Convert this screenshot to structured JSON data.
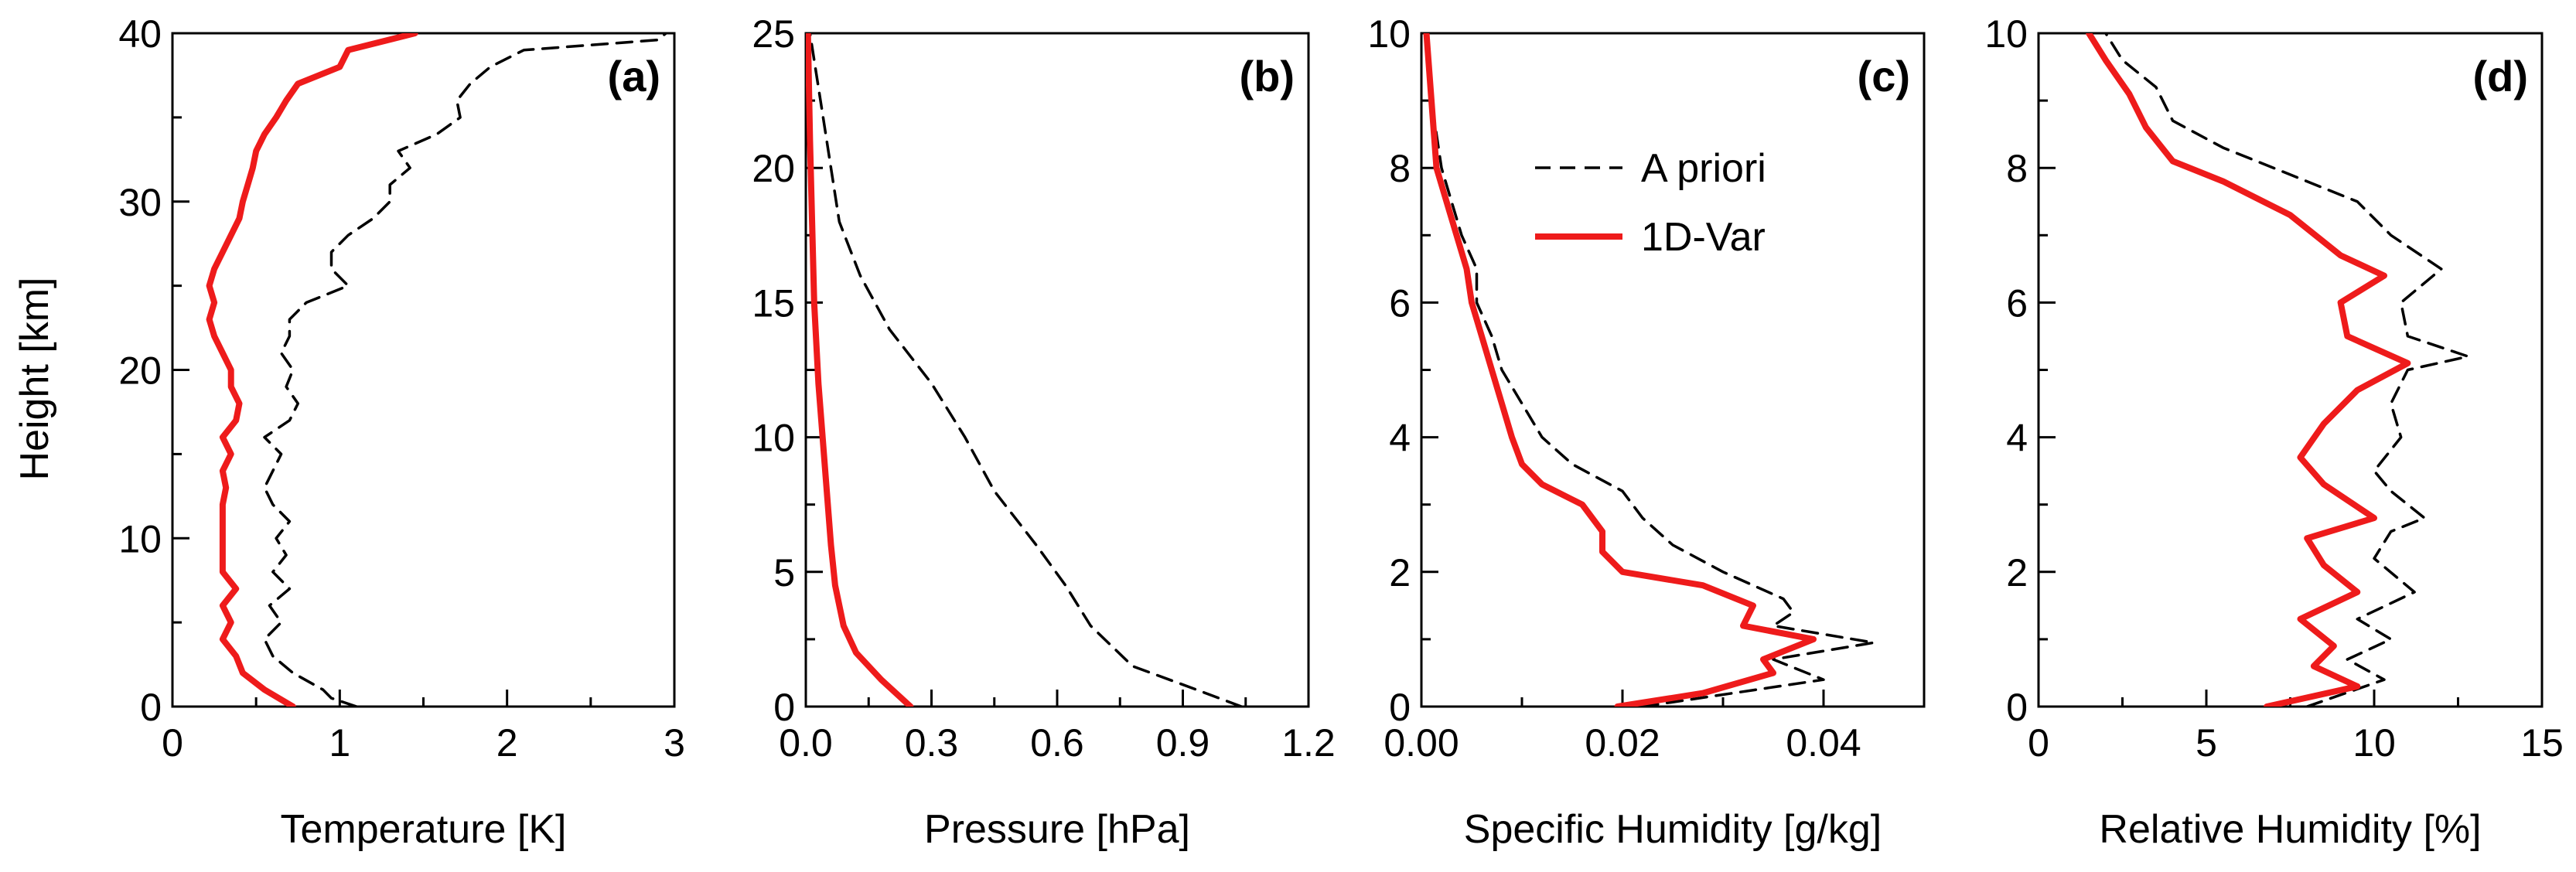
{
  "colors": {
    "apriori": "#000000",
    "var1d": "#ee1b1b"
  },
  "legend": {
    "apriori_label": "A priori",
    "var1d_label": "1D-Var",
    "apriori_style": "dashed",
    "var1d_style": "solid"
  },
  "chart_data": [
    {
      "type": "line",
      "panel_label": "(a)",
      "xlabel": "Temperature [K]",
      "ylabel": "Height [km]",
      "xlim": [
        0,
        3
      ],
      "ylim": [
        0,
        40
      ],
      "xticks": [
        0,
        1,
        2,
        3
      ],
      "xtick_labels": [
        "0",
        "1",
        "2",
        "3"
      ],
      "yticks": [
        0,
        10,
        20,
        30,
        40
      ],
      "ytick_labels": [
        "0",
        "10",
        "20",
        "30",
        "40"
      ],
      "series": [
        {
          "name": "A priori",
          "style": "dashed",
          "points": [
            [
              1.1,
              0
            ],
            [
              0.95,
              0.5
            ],
            [
              0.9,
              1
            ],
            [
              0.72,
              2
            ],
            [
              0.6,
              3
            ],
            [
              0.55,
              4
            ],
            [
              0.65,
              5
            ],
            [
              0.58,
              6
            ],
            [
              0.7,
              7
            ],
            [
              0.6,
              8
            ],
            [
              0.68,
              9
            ],
            [
              0.62,
              10
            ],
            [
              0.7,
              11
            ],
            [
              0.6,
              12
            ],
            [
              0.55,
              13
            ],
            [
              0.6,
              14
            ],
            [
              0.65,
              15
            ],
            [
              0.55,
              16
            ],
            [
              0.7,
              17
            ],
            [
              0.75,
              18
            ],
            [
              0.68,
              19
            ],
            [
              0.72,
              20
            ],
            [
              0.65,
              21
            ],
            [
              0.7,
              22
            ],
            [
              0.7,
              23
            ],
            [
              0.8,
              24
            ],
            [
              1.05,
              25
            ],
            [
              0.95,
              26
            ],
            [
              0.95,
              27
            ],
            [
              1.05,
              28
            ],
            [
              1.2,
              29
            ],
            [
              1.3,
              30
            ],
            [
              1.3,
              31
            ],
            [
              1.42,
              32
            ],
            [
              1.35,
              33
            ],
            [
              1.58,
              34
            ],
            [
              1.72,
              35
            ],
            [
              1.7,
              36
            ],
            [
              1.78,
              37
            ],
            [
              1.9,
              38
            ],
            [
              2.1,
              39
            ],
            [
              2.9,
              39.6
            ],
            [
              2.95,
              40
            ]
          ]
        },
        {
          "name": "1D-Var",
          "style": "solid",
          "points": [
            [
              0.72,
              0
            ],
            [
              0.55,
              1
            ],
            [
              0.42,
              2
            ],
            [
              0.38,
              3
            ],
            [
              0.3,
              4
            ],
            [
              0.35,
              5
            ],
            [
              0.3,
              6
            ],
            [
              0.38,
              7
            ],
            [
              0.3,
              8
            ],
            [
              0.3,
              9
            ],
            [
              0.3,
              10
            ],
            [
              0.3,
              11
            ],
            [
              0.3,
              12
            ],
            [
              0.32,
              13
            ],
            [
              0.3,
              14
            ],
            [
              0.35,
              15
            ],
            [
              0.3,
              16
            ],
            [
              0.38,
              17
            ],
            [
              0.4,
              18
            ],
            [
              0.35,
              19
            ],
            [
              0.35,
              20
            ],
            [
              0.3,
              21
            ],
            [
              0.25,
              22
            ],
            [
              0.22,
              23
            ],
            [
              0.25,
              24
            ],
            [
              0.22,
              25
            ],
            [
              0.25,
              26
            ],
            [
              0.3,
              27
            ],
            [
              0.35,
              28
            ],
            [
              0.4,
              29
            ],
            [
              0.42,
              30
            ],
            [
              0.45,
              31
            ],
            [
              0.48,
              32
            ],
            [
              0.5,
              33
            ],
            [
              0.55,
              34
            ],
            [
              0.62,
              35
            ],
            [
              0.68,
              36
            ],
            [
              0.75,
              37
            ],
            [
              1.0,
              38
            ],
            [
              1.05,
              39
            ],
            [
              1.45,
              40
            ]
          ]
        }
      ]
    },
    {
      "type": "line",
      "panel_label": "(b)",
      "xlabel": "Pressure [hPa]",
      "ylabel": "",
      "xlim": [
        0,
        1.2
      ],
      "ylim": [
        0,
        25
      ],
      "xticks": [
        0,
        0.3,
        0.6,
        0.9,
        1.2
      ],
      "xtick_labels": [
        "0.0",
        "0.3",
        "0.6",
        "0.9",
        "1.2"
      ],
      "yticks": [
        0,
        5,
        10,
        15,
        20,
        25
      ],
      "ytick_labels": [
        "0",
        "5",
        "10",
        "15",
        "20",
        "25"
      ],
      "series": [
        {
          "name": "A priori",
          "style": "dashed",
          "points": [
            [
              1.04,
              0
            ],
            [
              0.92,
              0.7
            ],
            [
              0.78,
              1.5
            ],
            [
              0.68,
              3
            ],
            [
              0.62,
              4.5
            ],
            [
              0.55,
              6
            ],
            [
              0.45,
              8
            ],
            [
              0.38,
              10
            ],
            [
              0.3,
              12
            ],
            [
              0.2,
              14
            ],
            [
              0.13,
              16
            ],
            [
              0.08,
              18
            ],
            [
              0.06,
              20
            ],
            [
              0.04,
              22
            ],
            [
              0.02,
              24
            ],
            [
              0.01,
              25
            ]
          ]
        },
        {
          "name": "1D-Var",
          "style": "solid",
          "points": [
            [
              0.25,
              0
            ],
            [
              0.18,
              1
            ],
            [
              0.12,
              2
            ],
            [
              0.09,
              3
            ],
            [
              0.07,
              4.5
            ],
            [
              0.06,
              6
            ],
            [
              0.05,
              8
            ],
            [
              0.04,
              10
            ],
            [
              0.03,
              12
            ],
            [
              0.02,
              15
            ],
            [
              0.015,
              18
            ],
            [
              0.01,
              21
            ],
            [
              0.005,
              25
            ]
          ]
        }
      ]
    },
    {
      "type": "line",
      "panel_label": "(c)",
      "xlabel": "Specific Humidity [g/kg]",
      "ylabel": "",
      "xlim": [
        0,
        0.05
      ],
      "ylim": [
        0,
        10
      ],
      "xticks": [
        0,
        0.02,
        0.04
      ],
      "xtick_labels": [
        "0.00",
        "0.02",
        "0.04"
      ],
      "yticks": [
        0,
        2,
        4,
        6,
        8,
        10
      ],
      "ytick_labels": [
        "0",
        "2",
        "4",
        "6",
        "8",
        "10"
      ],
      "series": [
        {
          "name": "A priori",
          "style": "dashed",
          "points": [
            [
              0.022,
              0
            ],
            [
              0.04,
              0.4
            ],
            [
              0.035,
              0.7
            ],
            [
              0.045,
              0.95
            ],
            [
              0.035,
              1.2
            ],
            [
              0.037,
              1.4
            ],
            [
              0.036,
              1.6
            ],
            [
              0.03,
              2
            ],
            [
              0.025,
              2.4
            ],
            [
              0.022,
              2.8
            ],
            [
              0.02,
              3.2
            ],
            [
              0.015,
              3.6
            ],
            [
              0.012,
              4
            ],
            [
              0.01,
              4.5
            ],
            [
              0.008,
              5
            ],
            [
              0.007,
              5.5
            ],
            [
              0.0055,
              6
            ],
            [
              0.0055,
              6.5
            ],
            [
              0.004,
              7
            ],
            [
              0.003,
              7.5
            ],
            [
              0.002,
              8
            ],
            [
              0.001,
              9
            ],
            [
              0.0005,
              10
            ]
          ]
        },
        {
          "name": "1D-Var",
          "style": "solid",
          "points": [
            [
              0.0195,
              0
            ],
            [
              0.028,
              0.2
            ],
            [
              0.035,
              0.5
            ],
            [
              0.034,
              0.7
            ],
            [
              0.039,
              1
            ],
            [
              0.032,
              1.2
            ],
            [
              0.033,
              1.5
            ],
            [
              0.028,
              1.8
            ],
            [
              0.02,
              2
            ],
            [
              0.018,
              2.3
            ],
            [
              0.018,
              2.6
            ],
            [
              0.016,
              3
            ],
            [
              0.012,
              3.3
            ],
            [
              0.01,
              3.6
            ],
            [
              0.009,
              4
            ],
            [
              0.008,
              4.5
            ],
            [
              0.007,
              5
            ],
            [
              0.006,
              5.5
            ],
            [
              0.005,
              6
            ],
            [
              0.0045,
              6.5
            ],
            [
              0.0035,
              7
            ],
            [
              0.0025,
              7.5
            ],
            [
              0.0015,
              8
            ],
            [
              0.001,
              9
            ],
            [
              0.0005,
              10
            ]
          ]
        }
      ]
    },
    {
      "type": "line",
      "panel_label": "(d)",
      "xlabel": "Relative Humidity [%]",
      "ylabel": "",
      "xlim": [
        0,
        15
      ],
      "ylim": [
        0,
        10
      ],
      "xticks": [
        0,
        5,
        10,
        15
      ],
      "xtick_labels": [
        "0",
        "5",
        "10",
        "15"
      ],
      "yticks": [
        0,
        2,
        4,
        6,
        8,
        10
      ],
      "ytick_labels": [
        "0",
        "2",
        "4",
        "6",
        "8",
        "10"
      ],
      "series": [
        {
          "name": "A priori",
          "style": "dashed",
          "points": [
            [
              8,
              0
            ],
            [
              10.3,
              0.4
            ],
            [
              9.2,
              0.7
            ],
            [
              10.5,
              1
            ],
            [
              9.5,
              1.3
            ],
            [
              11.2,
              1.7
            ],
            [
              10,
              2.2
            ],
            [
              10.5,
              2.6
            ],
            [
              11.5,
              2.8
            ],
            [
              10.5,
              3.2
            ],
            [
              10,
              3.5
            ],
            [
              10.8,
              4
            ],
            [
              10.5,
              4.5
            ],
            [
              11,
              5
            ],
            [
              12.8,
              5.2
            ],
            [
              11,
              5.5
            ],
            [
              10.8,
              6
            ],
            [
              12,
              6.5
            ],
            [
              10.5,
              7
            ],
            [
              9.5,
              7.5
            ],
            [
              7,
              8
            ],
            [
              5.5,
              8.3
            ],
            [
              4,
              8.7
            ],
            [
              3.5,
              9.2
            ],
            [
              2.5,
              9.6
            ],
            [
              2,
              10
            ]
          ]
        },
        {
          "name": "1D-Var",
          "style": "solid",
          "points": [
            [
              6.8,
              0
            ],
            [
              9.5,
              0.3
            ],
            [
              8.2,
              0.6
            ],
            [
              8.8,
              0.9
            ],
            [
              7.8,
              1.3
            ],
            [
              9.5,
              1.7
            ],
            [
              8.5,
              2.1
            ],
            [
              8,
              2.5
            ],
            [
              10,
              2.8
            ],
            [
              8.5,
              3.3
            ],
            [
              7.8,
              3.7
            ],
            [
              8.5,
              4.2
            ],
            [
              9.5,
              4.7
            ],
            [
              11,
              5.1
            ],
            [
              9.2,
              5.5
            ],
            [
              9,
              6
            ],
            [
              10.3,
              6.4
            ],
            [
              9,
              6.7
            ],
            [
              7.5,
              7.3
            ],
            [
              5.5,
              7.8
            ],
            [
              4,
              8.1
            ],
            [
              3.2,
              8.6
            ],
            [
              2.7,
              9.1
            ],
            [
              2,
              9.6
            ],
            [
              1.5,
              10
            ]
          ]
        }
      ]
    }
  ]
}
